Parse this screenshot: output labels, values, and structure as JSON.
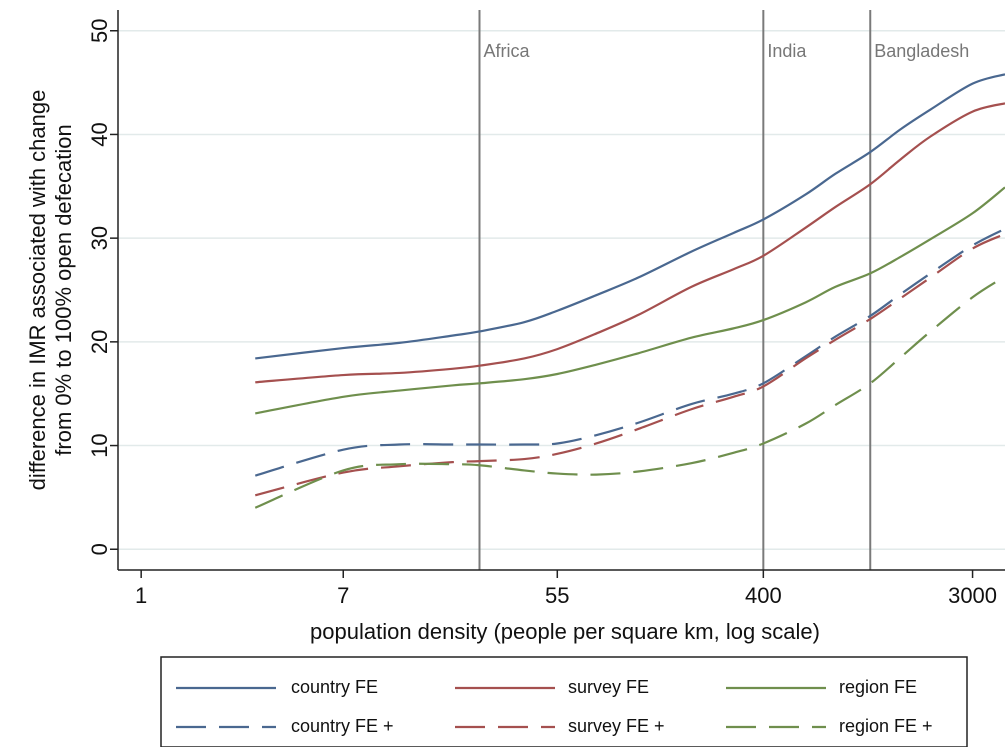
{
  "chart_data": {
    "type": "line",
    "title": "",
    "xlabel": "population density (people per square km, log scale)",
    "ylabel": "difference in IMR associated with change from 0% to 100% open defecation",
    "ylabel_lines": [
      "difference in IMR associated with change",
      "from 0% to 100% open defecation"
    ],
    "x_scale": "log",
    "xlim": [
      0.8,
      4100
    ],
    "ylim": [
      -2,
      52
    ],
    "x_ticks": [
      1,
      7,
      55,
      400,
      3000
    ],
    "y_ticks": [
      0,
      10,
      20,
      30,
      40,
      50
    ],
    "grid": "horizontal",
    "legend": "bottom",
    "reference_lines": [
      {
        "x": 26,
        "label": "Africa"
      },
      {
        "x": 400,
        "label": "India"
      },
      {
        "x": 1120,
        "label": "Bangladesh"
      }
    ],
    "x": [
      3,
      7,
      12,
      20,
      26,
      40,
      55,
      80,
      120,
      200,
      300,
      400,
      600,
      800,
      1120,
      1500,
      2000,
      3000,
      4100
    ],
    "series": [
      {
        "name": "country FE",
        "color": "#4a6890",
        "dash": "solid",
        "values": [
          18.4,
          19.4,
          19.9,
          20.6,
          21.0,
          21.9,
          23.0,
          24.5,
          26.2,
          28.7,
          30.5,
          31.8,
          34.2,
          36.2,
          38.3,
          40.5,
          42.4,
          44.9,
          45.8
        ]
      },
      {
        "name": "survey FE",
        "color": "#a5504f",
        "dash": "solid",
        "values": [
          16.1,
          16.8,
          17.0,
          17.4,
          17.7,
          18.4,
          19.3,
          20.8,
          22.6,
          25.3,
          27.0,
          28.3,
          31.0,
          33.0,
          35.2,
          37.6,
          39.8,
          42.2,
          43.0
        ]
      },
      {
        "name": "region FE",
        "color": "#6f8f4d",
        "dash": "solid",
        "values": [
          13.1,
          14.7,
          15.3,
          15.8,
          16.0,
          16.4,
          16.9,
          17.8,
          18.9,
          20.4,
          21.3,
          22.1,
          23.8,
          25.3,
          26.6,
          28.2,
          29.9,
          32.4,
          34.9
        ]
      },
      {
        "name": "country FE +",
        "color": "#4a6890",
        "dash": "dash",
        "values": [
          7.1,
          9.6,
          10.1,
          10.1,
          10.1,
          10.1,
          10.2,
          11.0,
          12.2,
          14.0,
          15.0,
          16.0,
          18.6,
          20.5,
          22.5,
          24.6,
          26.6,
          29.3,
          30.9
        ]
      },
      {
        "name": "survey FE +",
        "color": "#a5504f",
        "dash": "dash",
        "values": [
          5.2,
          7.4,
          8.0,
          8.4,
          8.5,
          8.7,
          9.2,
          10.2,
          11.6,
          13.5,
          14.7,
          15.7,
          18.4,
          20.2,
          22.2,
          24.2,
          26.2,
          29.0,
          30.4
        ]
      },
      {
        "name": "region FE +",
        "color": "#6f8f4d",
        "dash": "dash",
        "values": [
          4.0,
          7.6,
          8.2,
          8.2,
          8.1,
          7.6,
          7.3,
          7.2,
          7.5,
          8.3,
          9.3,
          10.2,
          12.1,
          13.9,
          16.0,
          18.5,
          21.0,
          24.3,
          26.3
        ]
      }
    ]
  }
}
